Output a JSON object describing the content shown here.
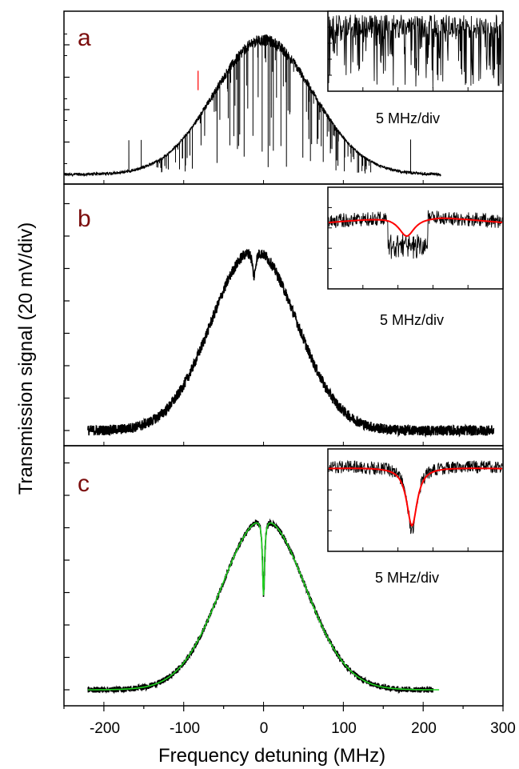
{
  "chart_data": {
    "type": "line",
    "xlabel": "Frequency detuning (MHz)",
    "ylabel": "Transmission signal (20 mV/div)",
    "xlim": [
      -250,
      300
    ],
    "xticks": [
      -200,
      -100,
      0,
      100,
      200,
      300
    ],
    "xtick_labels": [
      "-200",
      "-100",
      "0",
      "100",
      "200",
      "300"
    ],
    "line_color": "#000000",
    "panels": [
      {
        "label": "a",
        "description_color": "#7b0d0d",
        "trace": {
          "x_start": -250,
          "x_end": 222,
          "baseline": 0.0,
          "peak": 4.15,
          "center": 0,
          "sigma": 62,
          "noise": "strong spikes",
          "color": "#000000"
        },
        "inset": {
          "scale_label": "5 MHz/div",
          "fit": false
        }
      },
      {
        "label": "b",
        "description_color": "#7b0d0d",
        "trace": {
          "x_start": -220,
          "x_end": 288,
          "baseline": 0.0,
          "peak": 5.6,
          "center": -12,
          "sigma": 53,
          "dip_depth": 0.15,
          "noise": "moderate",
          "color": "#000000"
        },
        "inset": {
          "scale_label": "5 MHz/div",
          "fit": true,
          "fit_color": "#ff0000"
        }
      },
      {
        "label": "c",
        "description_color": "#7b0d0d",
        "trace": {
          "x_start": -220,
          "x_end": 212,
          "baseline": 0.0,
          "peak": 5.3,
          "center": 0,
          "sigma": 52,
          "dip_depth": 0.45,
          "noise": "low",
          "color": "#000000",
          "fit_color": "#1fd01f",
          "fit_x_end": 220
        },
        "inset": {
          "scale_label": "5 MHz/div",
          "fit": true,
          "fit_color": "#ff0000"
        }
      }
    ]
  }
}
